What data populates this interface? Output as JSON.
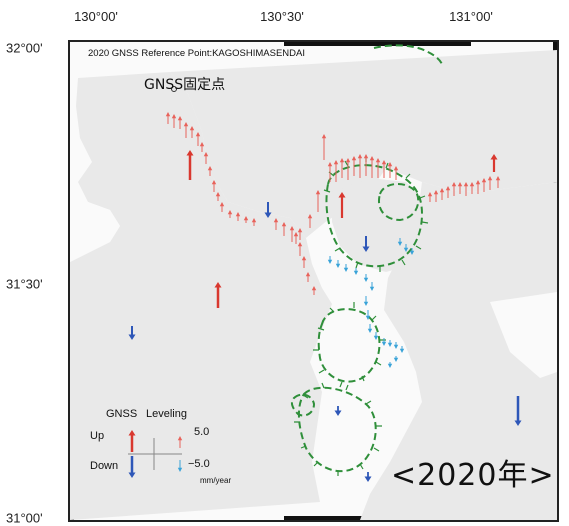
{
  "axes": {
    "longitude_labels": [
      "130°00'",
      "130°30'",
      "131°00'"
    ],
    "latitude_labels": [
      "32°00'",
      "31°30'",
      "31°00'"
    ]
  },
  "map": {
    "title": "2020 GNSS Reference Point:KAGOSHIMASENDAI",
    "reference_point_label": "GNSS固定点",
    "year_label": "<2020年>"
  },
  "legend": {
    "gnss_label": "GNSS",
    "leveling_label": "Leveling",
    "up_label": "Up",
    "down_label": "Down",
    "up_value": "5.0",
    "down_value": "−5.0",
    "unit": "mm/year"
  },
  "colors": {
    "gnss_up": "#d9382f",
    "gnss_down": "#2e57b8",
    "leveling_up": "#e8625a",
    "leveling_down": "#3aa3d8",
    "caldera_dash": "#2f8f3a",
    "land": "#e9e9e9",
    "sea": "#fafafa"
  }
}
